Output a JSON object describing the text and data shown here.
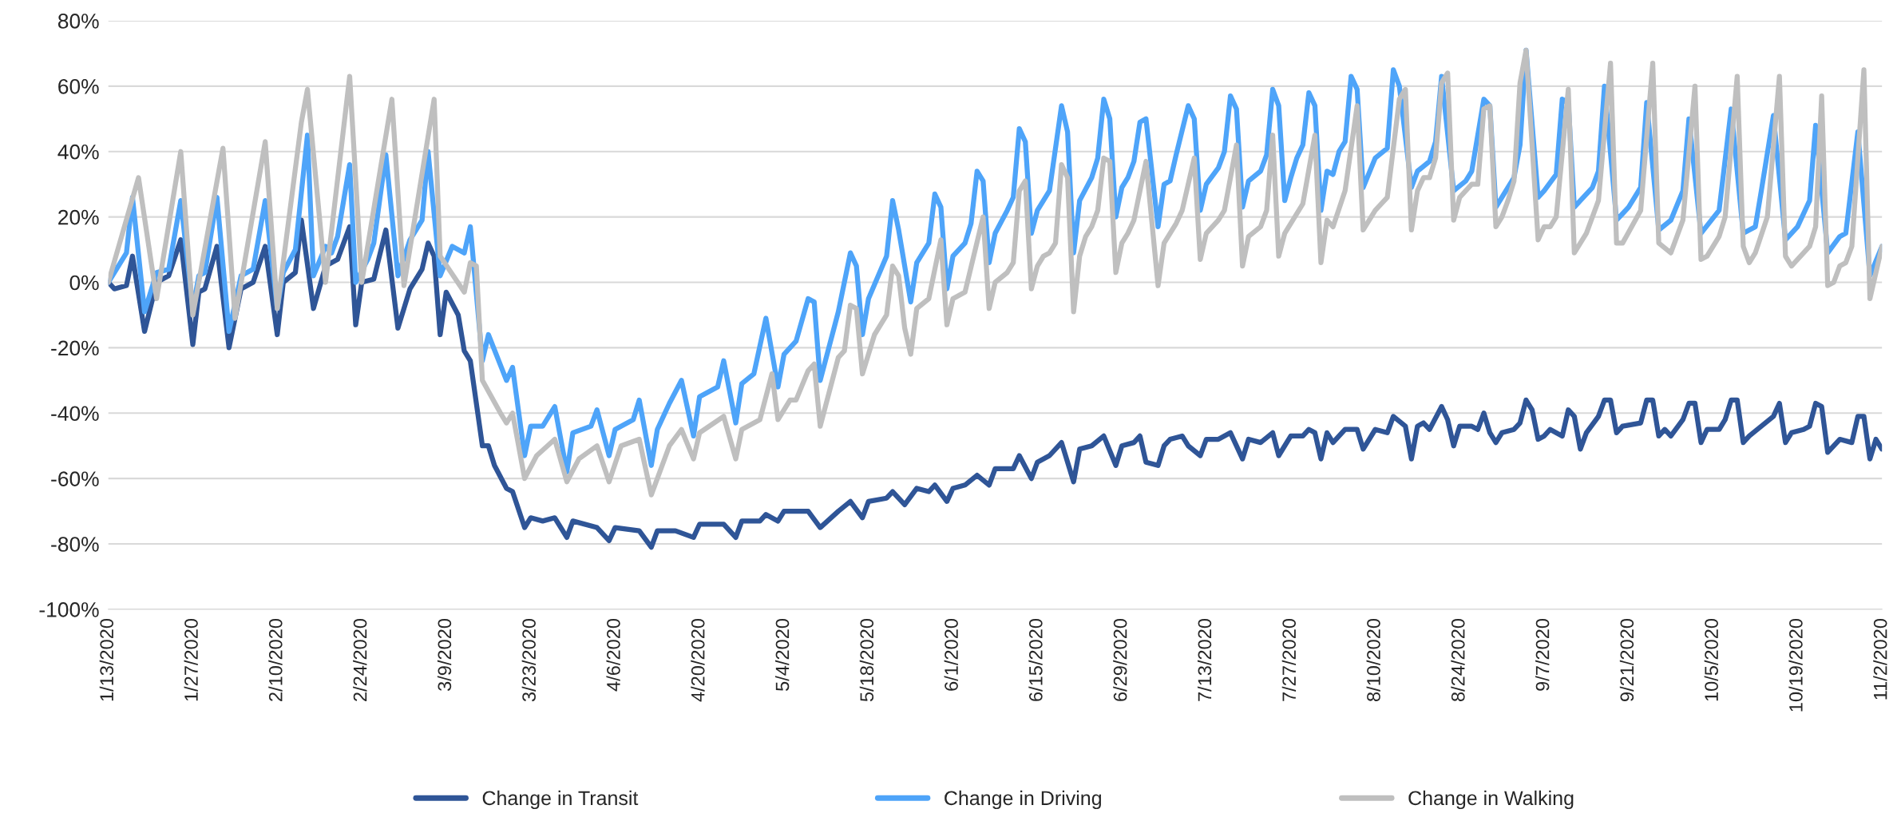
{
  "chart_data": {
    "type": "line",
    "xlim": [
      "2020-01-13",
      "2020-11-02"
    ],
    "xticks": [
      {
        "value": "2020-01-13",
        "label": "1/13/2020"
      },
      {
        "value": "2020-01-27",
        "label": "1/27/2020"
      },
      {
        "value": "2020-02-10",
        "label": "2/10/2020"
      },
      {
        "value": "2020-02-24",
        "label": "2/24/2020"
      },
      {
        "value": "2020-03-09",
        "label": "3/9/2020"
      },
      {
        "value": "2020-03-23",
        "label": "3/23/2020"
      },
      {
        "value": "2020-04-06",
        "label": "4/6/2020"
      },
      {
        "value": "2020-04-20",
        "label": "4/20/2020"
      },
      {
        "value": "2020-05-04",
        "label": "5/4/2020"
      },
      {
        "value": "2020-05-18",
        "label": "5/18/2020"
      },
      {
        "value": "2020-06-01",
        "label": "6/1/2020"
      },
      {
        "value": "2020-06-15",
        "label": "6/15/2020"
      },
      {
        "value": "2020-06-29",
        "label": "6/29/2020"
      },
      {
        "value": "2020-07-13",
        "label": "7/13/2020"
      },
      {
        "value": "2020-07-27",
        "label": "7/27/2020"
      },
      {
        "value": "2020-08-10",
        "label": "8/10/2020"
      },
      {
        "value": "2020-08-24",
        "label": "8/24/2020"
      },
      {
        "value": "2020-09-07",
        "label": "9/7/2020"
      },
      {
        "value": "2020-09-21",
        "label": "9/21/2020"
      },
      {
        "value": "2020-10-05",
        "label": "10/5/2020"
      },
      {
        "value": "2020-10-19",
        "label": "10/19/2020"
      },
      {
        "value": "2020-11-02",
        "label": "11/2/2020"
      }
    ],
    "ylim": [
      -100,
      80
    ],
    "yticks": [
      {
        "value": -100,
        "label": "-100%"
      },
      {
        "value": -80,
        "label": "-80%"
      },
      {
        "value": -60,
        "label": "-60%"
      },
      {
        "value": -40,
        "label": "-40%"
      },
      {
        "value": -20,
        "label": "-20%"
      },
      {
        "value": 0,
        "label": "0%"
      },
      {
        "value": 20,
        "label": "20%"
      },
      {
        "value": 40,
        "label": "40%"
      },
      {
        "value": 60,
        "label": "60%"
      },
      {
        "value": 80,
        "label": "80%"
      }
    ],
    "grid": "y",
    "legend": "bottom",
    "marker": "none",
    "line_style": "solid",
    "series": [
      {
        "name": "Change in Transit",
        "color": "#2f5597",
        "x": [
          "2020-01-13",
          "2020-01-14",
          "2020-01-16",
          "2020-01-17",
          "2020-01-19",
          "2020-01-21",
          "2020-01-23",
          "2020-01-25",
          "2020-01-27",
          "2020-01-28",
          "2020-01-29",
          "2020-01-31",
          "2020-02-02",
          "2020-02-04",
          "2020-02-06",
          "2020-02-08",
          "2020-02-10",
          "2020-02-11",
          "2020-02-13",
          "2020-02-14",
          "2020-02-16",
          "2020-02-18",
          "2020-02-20",
          "2020-02-22",
          "2020-02-23",
          "2020-02-24",
          "2020-02-26",
          "2020-02-28",
          "2020-03-01",
          "2020-03-03",
          "2020-03-05",
          "2020-03-06",
          "2020-03-07",
          "2020-03-08",
          "2020-03-09",
          "2020-03-11",
          "2020-03-12",
          "2020-03-13",
          "2020-03-15",
          "2020-03-16",
          "2020-03-17",
          "2020-03-19",
          "2020-03-20",
          "2020-03-22",
          "2020-03-23",
          "2020-03-25",
          "2020-03-27",
          "2020-03-29",
          "2020-03-30",
          "2020-04-03",
          "2020-04-05",
          "2020-04-06",
          "2020-04-10",
          "2020-04-12",
          "2020-04-13",
          "2020-04-14",
          "2020-04-16",
          "2020-04-19",
          "2020-04-20",
          "2020-04-24",
          "2020-04-26",
          "2020-04-27",
          "2020-04-30",
          "2020-05-01",
          "2020-05-03",
          "2020-05-04",
          "2020-05-08",
          "2020-05-10",
          "2020-05-13",
          "2020-05-15",
          "2020-05-17",
          "2020-05-18",
          "2020-05-21",
          "2020-05-22",
          "2020-05-24",
          "2020-05-26",
          "2020-05-28",
          "2020-05-29",
          "2020-05-31",
          "2020-06-01",
          "2020-06-03",
          "2020-06-05",
          "2020-06-07",
          "2020-06-08",
          "2020-06-11",
          "2020-06-12",
          "2020-06-14",
          "2020-06-15",
          "2020-06-17",
          "2020-06-19",
          "2020-06-21",
          "2020-06-22",
          "2020-06-24",
          "2020-06-26",
          "2020-06-28",
          "2020-06-29",
          "2020-07-01",
          "2020-07-02",
          "2020-07-03",
          "2020-07-05",
          "2020-07-06",
          "2020-07-07",
          "2020-07-09",
          "2020-07-10",
          "2020-07-12",
          "2020-07-13",
          "2020-07-15",
          "2020-07-17",
          "2020-07-19",
          "2020-07-20",
          "2020-07-22",
          "2020-07-24",
          "2020-07-25",
          "2020-07-27",
          "2020-07-29",
          "2020-07-30",
          "2020-07-31",
          "2020-08-01",
          "2020-08-02",
          "2020-08-03",
          "2020-08-05",
          "2020-08-07",
          "2020-08-08",
          "2020-08-10",
          "2020-08-12",
          "2020-08-13",
          "2020-08-15",
          "2020-08-16",
          "2020-08-17",
          "2020-08-18",
          "2020-08-19",
          "2020-08-21",
          "2020-08-22",
          "2020-08-23",
          "2020-08-24",
          "2020-08-26",
          "2020-08-27",
          "2020-08-28",
          "2020-08-29",
          "2020-08-30",
          "2020-08-31",
          "2020-09-02",
          "2020-09-03",
          "2020-09-04",
          "2020-09-05",
          "2020-09-06",
          "2020-09-07",
          "2020-09-08",
          "2020-09-10",
          "2020-09-11",
          "2020-09-12",
          "2020-09-13",
          "2020-09-14",
          "2020-09-16",
          "2020-09-17",
          "2020-09-18",
          "2020-09-19",
          "2020-09-20",
          "2020-09-23",
          "2020-09-24",
          "2020-09-25",
          "2020-09-26",
          "2020-09-27",
          "2020-09-28",
          "2020-09-30",
          "2020-10-01",
          "2020-10-02",
          "2020-10-03",
          "2020-10-04",
          "2020-10-06",
          "2020-10-07",
          "2020-10-08",
          "2020-10-09",
          "2020-10-10",
          "2020-10-11",
          "2020-10-13",
          "2020-10-15",
          "2020-10-16",
          "2020-10-17",
          "2020-10-18",
          "2020-10-20",
          "2020-10-21",
          "2020-10-22",
          "2020-10-23",
          "2020-10-24",
          "2020-10-26",
          "2020-10-28",
          "2020-10-29",
          "2020-10-30",
          "2020-10-31",
          "2020-11-01",
          "2020-11-02"
        ],
        "values": [
          0,
          -2,
          -1,
          8,
          -15,
          0,
          2,
          13,
          -19,
          -3,
          -2,
          11,
          -20,
          -2,
          0,
          11,
          -16,
          0,
          3,
          19,
          -8,
          5,
          7,
          17,
          -13,
          0,
          1,
          16,
          -14,
          -2,
          4,
          12,
          8,
          -16,
          -3,
          -10,
          -21,
          -24,
          -50,
          -50,
          -56,
          -63,
          -64,
          -75,
          -72,
          -73,
          -72,
          -78,
          -73,
          -75,
          -79,
          -75,
          -76,
          -81,
          -76,
          -76,
          -76,
          -78,
          -74,
          -74,
          -78,
          -73,
          -73,
          -71,
          -73,
          -70,
          -70,
          -75,
          -70,
          -67,
          -72,
          -67,
          -66,
          -64,
          -68,
          -63,
          -64,
          -62,
          -67,
          -63,
          -62,
          -59,
          -62,
          -57,
          -57,
          -53,
          -60,
          -55,
          -53,
          -49,
          -61,
          -51,
          -50,
          -47,
          -56,
          -50,
          -49,
          -47,
          -55,
          -56,
          -50,
          -48,
          -47,
          -50,
          -53,
          -48,
          -48,
          -46,
          -54,
          -48,
          -49,
          -46,
          -53,
          -47,
          -47,
          -45,
          -46,
          -54,
          -46,
          -49,
          -45,
          -45,
          -51,
          -45,
          -46,
          -41,
          -44,
          -54,
          -44,
          -43,
          -45,
          -38,
          -42,
          -50,
          -44,
          -44,
          -45,
          -40,
          -46,
          -49,
          -46,
          -45,
          -43,
          -36,
          -39,
          -48,
          -47,
          -45,
          -47,
          -39,
          -41,
          -51,
          -46,
          -41,
          -36,
          -36,
          -46,
          -44,
          -43,
          -36,
          -36,
          -47,
          -45,
          -47,
          -42,
          -37,
          -37,
          -49,
          -45,
          -45,
          -42,
          -36,
          -36,
          -49,
          -47,
          -44,
          -41,
          -37,
          -49,
          -46,
          -45,
          -44,
          -37,
          -38,
          -52,
          -48,
          -49,
          -41,
          -41,
          -54,
          -48,
          -51
        ]
      },
      {
        "name": "Change in Driving",
        "color": "#4ea4f9",
        "x": [
          "2020-01-13",
          "2020-01-16",
          "2020-01-17",
          "2020-01-19",
          "2020-01-21",
          "2020-01-23",
          "2020-01-25",
          "2020-01-27",
          "2020-01-28",
          "2020-01-29",
          "2020-01-31",
          "2020-02-02",
          "2020-02-04",
          "2020-02-06",
          "2020-02-08",
          "2020-02-10",
          "2020-02-11",
          "2020-02-13",
          "2020-02-15",
          "2020-02-16",
          "2020-02-18",
          "2020-02-19",
          "2020-02-20",
          "2020-02-22",
          "2020-02-23",
          "2020-02-25",
          "2020-02-26",
          "2020-02-28",
          "2020-03-01",
          "2020-03-03",
          "2020-03-05",
          "2020-03-06",
          "2020-03-08",
          "2020-03-10",
          "2020-03-12",
          "2020-03-13",
          "2020-03-15",
          "2020-03-16",
          "2020-03-19",
          "2020-03-20",
          "2020-03-22",
          "2020-03-23",
          "2020-03-25",
          "2020-03-27",
          "2020-03-29",
          "2020-03-30",
          "2020-04-02",
          "2020-04-03",
          "2020-04-05",
          "2020-04-06",
          "2020-04-09",
          "2020-04-10",
          "2020-04-12",
          "2020-04-13",
          "2020-04-15",
          "2020-04-17",
          "2020-04-19",
          "2020-04-20",
          "2020-04-23",
          "2020-04-24",
          "2020-04-26",
          "2020-04-27",
          "2020-04-29",
          "2020-05-01",
          "2020-05-03",
          "2020-05-04",
          "2020-05-06",
          "2020-05-08",
          "2020-05-09",
          "2020-05-10",
          "2020-05-13",
          "2020-05-15",
          "2020-05-16",
          "2020-05-17",
          "2020-05-18",
          "2020-05-21",
          "2020-05-22",
          "2020-05-23",
          "2020-05-25",
          "2020-05-26",
          "2020-05-28",
          "2020-05-29",
          "2020-05-30",
          "2020-05-31",
          "2020-06-01",
          "2020-06-03",
          "2020-06-04",
          "2020-06-05",
          "2020-06-06",
          "2020-06-07",
          "2020-06-08",
          "2020-06-10",
          "2020-06-11",
          "2020-06-12",
          "2020-06-13",
          "2020-06-14",
          "2020-06-15",
          "2020-06-17",
          "2020-06-19",
          "2020-06-20",
          "2020-06-21",
          "2020-06-22",
          "2020-06-24",
          "2020-06-25",
          "2020-06-26",
          "2020-06-27",
          "2020-06-28",
          "2020-06-29",
          "2020-06-30",
          "2020-07-01",
          "2020-07-02",
          "2020-07-03",
          "2020-07-05",
          "2020-07-06",
          "2020-07-07",
          "2020-07-08",
          "2020-07-10",
          "2020-07-11",
          "2020-07-12",
          "2020-07-13",
          "2020-07-15",
          "2020-07-16",
          "2020-07-17",
          "2020-07-18",
          "2020-07-19",
          "2020-07-20",
          "2020-07-22",
          "2020-07-23",
          "2020-07-24",
          "2020-07-25",
          "2020-07-26",
          "2020-07-27",
          "2020-07-28",
          "2020-07-29",
          "2020-07-30",
          "2020-07-31",
          "2020-08-01",
          "2020-08-02",
          "2020-08-03",
          "2020-08-04",
          "2020-08-05",
          "2020-08-06",
          "2020-08-07",
          "2020-08-08",
          "2020-08-10",
          "2020-08-12",
          "2020-08-13",
          "2020-08-14",
          "2020-08-16",
          "2020-08-17",
          "2020-08-19",
          "2020-08-20",
          "2020-08-21",
          "2020-08-23",
          "2020-08-25",
          "2020-08-26",
          "2020-08-28",
          "2020-08-29",
          "2020-08-30",
          "2020-09-01",
          "2020-09-02",
          "2020-09-03",
          "2020-09-04",
          "2020-09-06",
          "2020-09-07",
          "2020-09-09",
          "2020-09-10",
          "2020-09-11",
          "2020-09-12",
          "2020-09-13",
          "2020-09-15",
          "2020-09-16",
          "2020-09-17",
          "2020-09-19",
          "2020-09-21",
          "2020-09-23",
          "2020-09-24",
          "2020-09-26",
          "2020-09-28",
          "2020-09-30",
          "2020-10-01",
          "2020-10-03",
          "2020-10-06",
          "2020-10-08",
          "2020-10-10",
          "2020-10-12",
          "2020-10-13",
          "2020-10-15",
          "2020-10-17",
          "2020-10-19",
          "2020-10-21",
          "2020-10-22",
          "2020-10-24",
          "2020-10-26",
          "2020-10-27",
          "2020-10-29",
          "2020-10-31",
          "2020-11-02"
        ],
        "values": [
          0,
          9,
          26,
          -9,
          3,
          4,
          25,
          -8,
          2,
          3,
          26,
          -15,
          2,
          4,
          25,
          -8,
          3,
          10,
          45,
          2,
          11,
          9,
          14,
          36,
          0,
          7,
          12,
          39,
          2,
          13,
          19,
          40,
          2,
          11,
          9,
          17,
          -24,
          -16,
          -30,
          -26,
          -53,
          -44,
          -44,
          -38,
          -58,
          -46,
          -44,
          -39,
          -53,
          -45,
          -42,
          -36,
          -56,
          -45,
          -37,
          -30,
          -47,
          -35,
          -32,
          -24,
          -43,
          -31,
          -28,
          -11,
          -32,
          -22,
          -18,
          -5,
          -6,
          -30,
          -9,
          9,
          5,
          -16,
          -5,
          8,
          25,
          16,
          -6,
          6,
          12,
          27,
          23,
          -2,
          8,
          12,
          18,
          34,
          31,
          6,
          15,
          22,
          26,
          47,
          43,
          15,
          22,
          28,
          54,
          46,
          9,
          25,
          32,
          38,
          56,
          50,
          20,
          29,
          32,
          37,
          49,
          50,
          17,
          30,
          31,
          39,
          54,
          50,
          22,
          30,
          35,
          40,
          57,
          53,
          23,
          31,
          34,
          39,
          59,
          54,
          25,
          32,
          38,
          42,
          58,
          54,
          22,
          34,
          33,
          40,
          43,
          63,
          59,
          29,
          38,
          41,
          65,
          60,
          29,
          34,
          37,
          43,
          63,
          28,
          31,
          34,
          56,
          54,
          23,
          29,
          32,
          42,
          71,
          26,
          28,
          33,
          56,
          55,
          23,
          25,
          29,
          34,
          60,
          19,
          23,
          29,
          55,
          16,
          19,
          28,
          50,
          15,
          22,
          53,
          15,
          17,
          28,
          51,
          13,
          17,
          25,
          48,
          9,
          14,
          15,
          46,
          2,
          11
        ]
      },
      {
        "name": "Change in Walking",
        "color": "#bfbfbf",
        "x": [
          "2020-01-13",
          "2020-01-18",
          "2020-01-21",
          "2020-01-25",
          "2020-01-27",
          "2020-02-01",
          "2020-02-03",
          "2020-02-08",
          "2020-02-10",
          "2020-02-14",
          "2020-02-15",
          "2020-02-18",
          "2020-02-22",
          "2020-02-24",
          "2020-02-29",
          "2020-03-02",
          "2020-03-07",
          "2020-03-08",
          "2020-03-12",
          "2020-03-13",
          "2020-03-14",
          "2020-03-15",
          "2020-03-18",
          "2020-03-19",
          "2020-03-20",
          "2020-03-22",
          "2020-03-24",
          "2020-03-27",
          "2020-03-29",
          "2020-03-31",
          "2020-04-03",
          "2020-04-05",
          "2020-04-07",
          "2020-04-10",
          "2020-04-12",
          "2020-04-15",
          "2020-04-17",
          "2020-04-19",
          "2020-04-20",
          "2020-04-24",
          "2020-04-26",
          "2020-04-27",
          "2020-04-30",
          "2020-05-02",
          "2020-05-03",
          "2020-05-05",
          "2020-05-06",
          "2020-05-08",
          "2020-05-09",
          "2020-05-10",
          "2020-05-13",
          "2020-05-14",
          "2020-05-15",
          "2020-05-16",
          "2020-05-17",
          "2020-05-19",
          "2020-05-21",
          "2020-05-22",
          "2020-05-23",
          "2020-05-24",
          "2020-05-25",
          "2020-05-26",
          "2020-05-28",
          "2020-05-30",
          "2020-05-31",
          "2020-06-01",
          "2020-06-03",
          "2020-06-06",
          "2020-06-07",
          "2020-06-08",
          "2020-06-10",
          "2020-06-11",
          "2020-06-12",
          "2020-06-13",
          "2020-06-14",
          "2020-06-15",
          "2020-06-16",
          "2020-06-17",
          "2020-06-18",
          "2020-06-19",
          "2020-06-20",
          "2020-06-21",
          "2020-06-22",
          "2020-06-23",
          "2020-06-24",
          "2020-06-25",
          "2020-06-26",
          "2020-06-27",
          "2020-06-28",
          "2020-06-29",
          "2020-06-30",
          "2020-07-01",
          "2020-07-03",
          "2020-07-05",
          "2020-07-06",
          "2020-07-08",
          "2020-07-09",
          "2020-07-11",
          "2020-07-12",
          "2020-07-13",
          "2020-07-15",
          "2020-07-16",
          "2020-07-18",
          "2020-07-19",
          "2020-07-20",
          "2020-07-22",
          "2020-07-23",
          "2020-07-24",
          "2020-07-25",
          "2020-07-26",
          "2020-07-29",
          "2020-07-31",
          "2020-08-01",
          "2020-08-02",
          "2020-08-03",
          "2020-08-05",
          "2020-08-07",
          "2020-08-08",
          "2020-08-10",
          "2020-08-12",
          "2020-08-14",
          "2020-08-15",
          "2020-08-16",
          "2020-08-17",
          "2020-08-18",
          "2020-08-19",
          "2020-08-20",
          "2020-08-21",
          "2020-08-22",
          "2020-08-23",
          "2020-08-24",
          "2020-08-25",
          "2020-08-26",
          "2020-08-27",
          "2020-08-28",
          "2020-08-29",
          "2020-08-30",
          "2020-08-31",
          "2020-09-01",
          "2020-09-02",
          "2020-09-03",
          "2020-09-04",
          "2020-09-06",
          "2020-09-07",
          "2020-09-08",
          "2020-09-09",
          "2020-09-11",
          "2020-09-12",
          "2020-09-14",
          "2020-09-16",
          "2020-09-18",
          "2020-09-19",
          "2020-09-20",
          "2020-09-23",
          "2020-09-25",
          "2020-09-26",
          "2020-09-28",
          "2020-09-30",
          "2020-10-02",
          "2020-10-03",
          "2020-10-04",
          "2020-10-06",
          "2020-10-07",
          "2020-10-09",
          "2020-10-10",
          "2020-10-11",
          "2020-10-12",
          "2020-10-14",
          "2020-10-16",
          "2020-10-17",
          "2020-10-18",
          "2020-10-21",
          "2020-10-22",
          "2020-10-23",
          "2020-10-24",
          "2020-10-25",
          "2020-10-26",
          "2020-10-27",
          "2020-10-28",
          "2020-10-30",
          "2020-10-31",
          "2020-11-02"
        ],
        "values": [
          0,
          32,
          -5,
          40,
          -10,
          41,
          -11,
          43,
          -8,
          49,
          59,
          0,
          63,
          0,
          56,
          -1,
          56,
          8,
          -3,
          6,
          5,
          -30,
          -40,
          -43,
          -40,
          -60,
          -53,
          -48,
          -61,
          -54,
          -50,
          -61,
          -50,
          -48,
          -65,
          -50,
          -45,
          -54,
          -46,
          -41,
          -54,
          -45,
          -42,
          -28,
          -42,
          -36,
          -36,
          -27,
          -25,
          -44,
          -23,
          -21,
          -7,
          -8,
          -28,
          -16,
          -10,
          5,
          2,
          -14,
          -22,
          -8,
          -5,
          13,
          -13,
          -5,
          -3,
          20,
          -8,
          0,
          3,
          6,
          28,
          31,
          -2,
          5,
          8,
          9,
          12,
          36,
          32,
          -9,
          8,
          14,
          17,
          22,
          38,
          37,
          3,
          12,
          15,
          19,
          37,
          -1,
          12,
          18,
          22,
          38,
          7,
          15,
          19,
          22,
          42,
          5,
          14,
          17,
          22,
          45,
          8,
          15,
          24,
          45,
          6,
          19,
          17,
          28,
          54,
          16,
          22,
          26,
          56,
          59,
          16,
          28,
          32,
          32,
          38,
          61,
          64,
          19,
          26,
          28,
          30,
          30,
          53,
          54,
          17,
          20,
          25,
          31,
          61,
          71,
          13,
          17,
          17,
          20,
          59,
          9,
          15,
          25,
          67,
          12,
          12,
          22,
          67,
          12,
          9,
          19,
          60,
          7,
          8,
          14,
          20,
          63,
          11,
          6,
          9,
          20,
          63,
          8,
          5,
          11,
          17,
          57,
          -1,
          0,
          5,
          6,
          11,
          65,
          -5,
          11
        ]
      }
    ]
  }
}
